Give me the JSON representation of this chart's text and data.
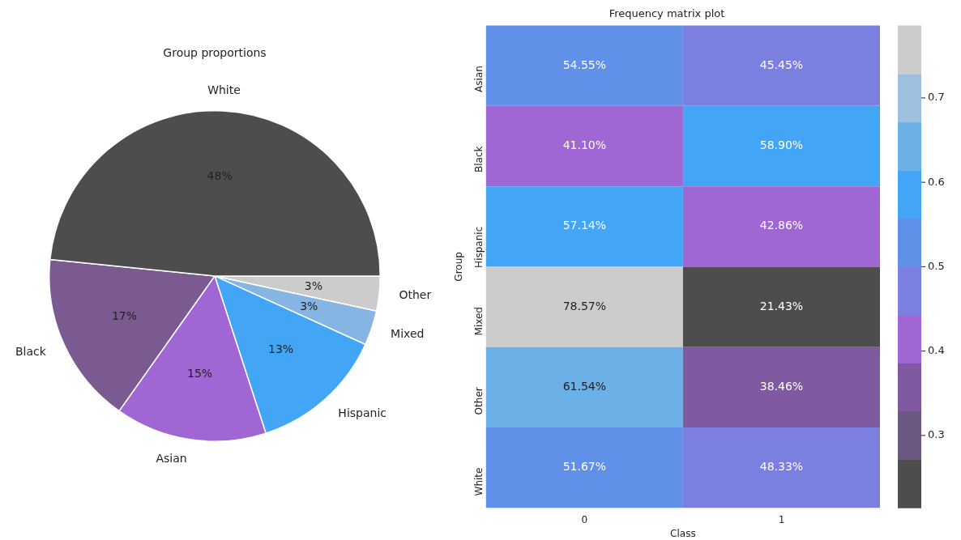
{
  "chart_data": [
    {
      "type": "pie",
      "title": "Group proportions",
      "categories": [
        "White",
        "Black",
        "Asian",
        "Hispanic",
        "Mixed",
        "Other"
      ],
      "values": [
        48.4,
        16.8,
        14.8,
        13.2,
        3.4,
        3.4
      ],
      "colors": [
        "#4d4d4d",
        "#7a5a90",
        "#a066d3",
        "#42a5f5",
        "#86b5e3",
        "#cccccc"
      ],
      "value_labels": [
        "48%",
        "17%",
        "15%",
        "13%",
        "3%",
        "3%"
      ],
      "legend": false
    },
    {
      "type": "heatmap",
      "title": "Frequency matrix plot",
      "xlabel": "Class",
      "ylabel": "Group",
      "categories": [
        "0",
        "1"
      ],
      "y_categories": [
        "Asian",
        "Black",
        "Hispanic",
        "Mixed",
        "Other",
        "White"
      ],
      "cells": [
        [
          0.5455,
          0.4545
        ],
        [
          0.411,
          0.589
        ],
        [
          0.5714,
          0.4286
        ],
        [
          0.7857,
          0.2143
        ],
        [
          0.6154,
          0.3846
        ],
        [
          0.5167,
          0.4833
        ]
      ],
      "cell_labels": [
        [
          "54.55%",
          "45.45%"
        ],
        [
          "41.10%",
          "58.90%"
        ],
        [
          "57.14%",
          "42.86%"
        ],
        [
          "78.57%",
          "21.43%"
        ],
        [
          "61.54%",
          "38.46%"
        ],
        [
          "51.67%",
          "48.33%"
        ]
      ],
      "clim": [
        0.2143,
        0.7857
      ],
      "cticks": [
        0.3,
        0.4,
        0.5,
        0.6,
        0.7
      ],
      "colors": [
        "#4d4d4d",
        "#6b5780",
        "#7f5aa0",
        "#a066d3",
        "#7b7fe0",
        "#6190e8",
        "#42a5f5",
        "#6cb0e8",
        "#9dc0de",
        "#cccccc"
      ]
    }
  ]
}
